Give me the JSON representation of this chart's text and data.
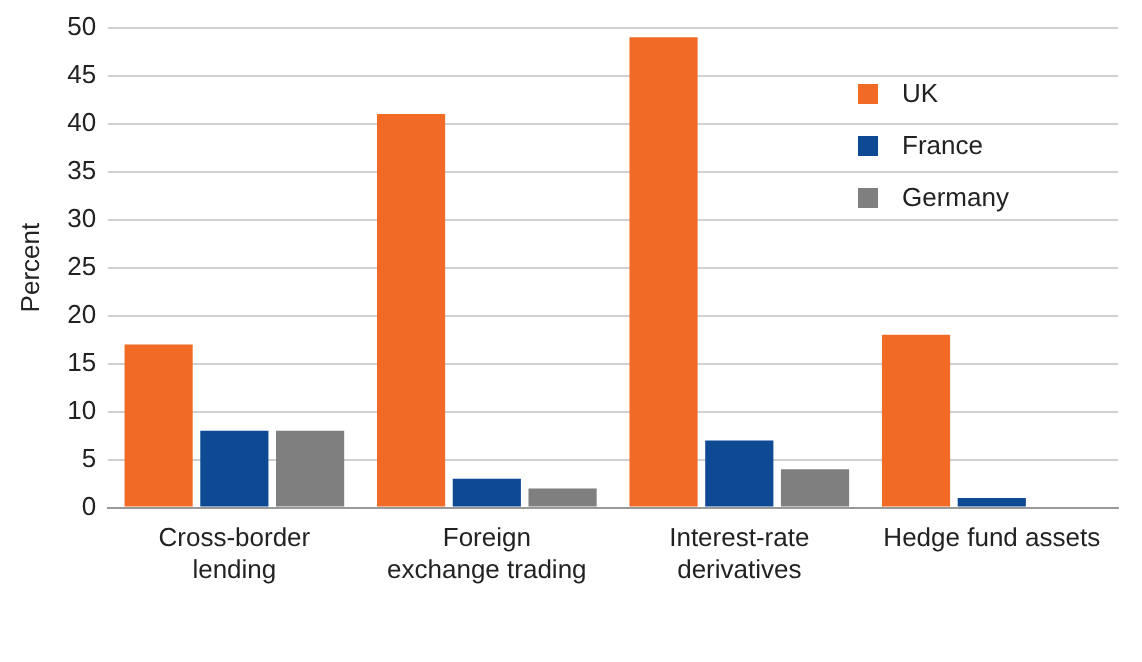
{
  "chart_data": {
    "type": "bar",
    "ylabel": "Percent",
    "categories": [
      "Cross-border lending",
      "Foreign exchange trading",
      "Interest-rate derivatives",
      "Hedge fund assets"
    ],
    "series": [
      {
        "name": "UK",
        "color": "#f26b26",
        "values": [
          17,
          41,
          49,
          18
        ]
      },
      {
        "name": "France",
        "color": "#0e4a93",
        "values": [
          8,
          3,
          7,
          1
        ]
      },
      {
        "name": "Germany",
        "color": "#7f7f7f",
        "values": [
          8,
          2,
          4,
          null
        ]
      }
    ],
    "ylim": [
      0,
      50
    ],
    "yticks": [
      0,
      5,
      10,
      15,
      20,
      25,
      30,
      35,
      40,
      45,
      50
    ],
    "grid": "y",
    "legend": "top right"
  }
}
